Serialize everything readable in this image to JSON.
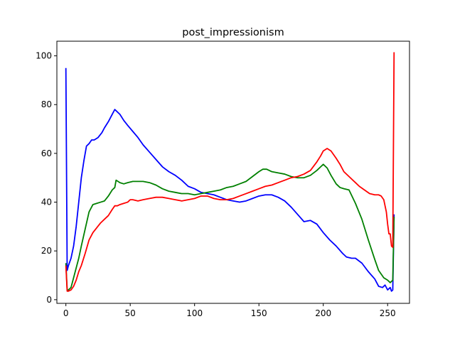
{
  "chart_data": {
    "type": "line",
    "title": "post_impressionism",
    "xlabel": "",
    "ylabel": "",
    "xlim": [
      -7,
      267
    ],
    "ylim": [
      -1.5,
      106
    ],
    "xticks": [
      0,
      50,
      100,
      150,
      200,
      250
    ],
    "yticks": [
      0,
      20,
      40,
      60,
      80,
      100
    ],
    "grid": false,
    "legend": "none",
    "series": [
      {
        "color": "#0000ff",
        "x": [
          0,
          1,
          2,
          4,
          6,
          8,
          10,
          12,
          14,
          16,
          18,
          20,
          22,
          25,
          28,
          30,
          33,
          36,
          38,
          39,
          42,
          45,
          48,
          52,
          56,
          60,
          65,
          70,
          75,
          80,
          85,
          90,
          95,
          100,
          105,
          110,
          115,
          120,
          125,
          130,
          135,
          140,
          145,
          150,
          155,
          160,
          165,
          170,
          175,
          180,
          185,
          190,
          195,
          200,
          205,
          210,
          215,
          218,
          222,
          225,
          230,
          235,
          240,
          243,
          246,
          248,
          250,
          252,
          253,
          254,
          255
        ],
        "y": [
          95,
          12,
          14,
          17,
          22,
          30,
          40,
          50,
          57,
          63,
          64,
          65.5,
          65.5,
          66.5,
          68.5,
          70.5,
          73,
          76,
          78,
          77.5,
          76,
          73.5,
          71.5,
          69,
          66.5,
          63.5,
          60.5,
          57.5,
          54.5,
          52.5,
          51,
          49,
          46.5,
          45.5,
          44,
          43.5,
          43,
          42,
          41,
          40.5,
          40,
          40.5,
          41.5,
          42.5,
          43,
          43,
          42,
          40.5,
          38,
          35,
          32,
          32.5,
          31,
          27.5,
          24.5,
          22,
          19,
          17.5,
          17,
          17,
          15,
          11.5,
          8.5,
          5.5,
          5,
          6,
          4,
          5,
          3.5,
          4,
          35
        ]
      },
      {
        "color": "#008000",
        "x": [
          0,
          1,
          2,
          4,
          6,
          8,
          10,
          12,
          15,
          18,
          21,
          24,
          27,
          30,
          33,
          36,
          38,
          39,
          42,
          45,
          48,
          52,
          55,
          60,
          65,
          70,
          75,
          80,
          85,
          90,
          95,
          100,
          105,
          110,
          115,
          120,
          125,
          130,
          135,
          140,
          145,
          150,
          153,
          156,
          160,
          165,
          170,
          175,
          180,
          185,
          190,
          195,
          198,
          200,
          203,
          206,
          210,
          213,
          216,
          220,
          225,
          230,
          235,
          240,
          243,
          247,
          250,
          252,
          253,
          254,
          255
        ],
        "y": [
          15,
          4,
          4,
          5,
          9,
          13,
          17,
          22,
          29,
          36,
          39,
          39.5,
          40,
          40.5,
          42.5,
          45,
          46,
          49,
          48,
          47.5,
          48,
          48.5,
          48.5,
          48.5,
          48,
          47,
          45.5,
          44.5,
          44,
          43.5,
          43.5,
          43,
          43.5,
          44,
          44.5,
          45,
          46,
          46.5,
          47.5,
          48.5,
          50.5,
          52.5,
          53.5,
          53.5,
          52.5,
          52,
          51.5,
          50.5,
          50,
          50,
          51,
          53,
          54.5,
          55.5,
          54,
          51,
          47.5,
          46,
          45.5,
          45,
          39.5,
          33,
          24.5,
          16.5,
          12,
          9,
          8,
          7,
          7.5,
          8,
          34
        ]
      },
      {
        "color": "#ff0000",
        "x": [
          0,
          1,
          2,
          4,
          6,
          8,
          10,
          12,
          15,
          18,
          21,
          24,
          27,
          30,
          33,
          36,
          38,
          40,
          42,
          45,
          48,
          50,
          52,
          56,
          60,
          65,
          70,
          75,
          80,
          85,
          90,
          95,
          100,
          105,
          110,
          115,
          120,
          125,
          130,
          135,
          140,
          145,
          150,
          155,
          160,
          165,
          170,
          175,
          180,
          185,
          190,
          195,
          198,
          200,
          203,
          206,
          210,
          213,
          216,
          220,
          225,
          228,
          232,
          236,
          240,
          243,
          245,
          247,
          249,
          250,
          251,
          252,
          253,
          254,
          255
        ],
        "y": [
          14,
          3.5,
          3.5,
          4,
          5.5,
          8,
          11.5,
          14,
          19,
          24.5,
          27.5,
          29.5,
          31.5,
          33,
          34.5,
          37,
          38.5,
          38.5,
          39,
          39.5,
          40,
          41,
          41,
          40.5,
          41,
          41.5,
          42,
          42,
          41.5,
          41,
          40.5,
          41,
          41.5,
          42.5,
          42.5,
          41.5,
          41,
          41,
          41.5,
          42.5,
          43.5,
          44.5,
          45.5,
          46.5,
          47,
          48,
          49,
          50,
          50.5,
          51.5,
          53,
          56.5,
          59,
          61,
          62,
          61,
          58,
          55.5,
          52.5,
          50.5,
          48,
          46.5,
          45,
          43.5,
          43,
          43,
          42.5,
          41,
          36,
          31,
          27,
          27,
          22,
          21.5,
          101.5
        ]
      }
    ]
  }
}
